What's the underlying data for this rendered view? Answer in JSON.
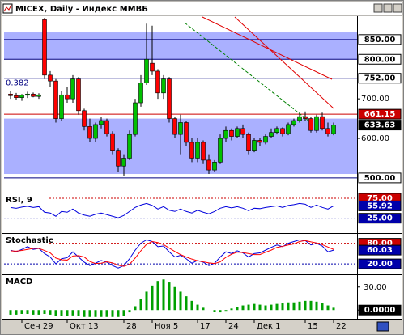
{
  "chart_data": [
    {
      "type": "candlestick",
      "title": "MICEX, Daily - Индекс ММВБ",
      "categories": [
        null,
        null,
        "Сен 29",
        null,
        null,
        null,
        null,
        null,
        null,
        null,
        "Окт 13",
        null,
        null,
        null,
        null,
        null,
        null,
        null,
        null,
        null,
        "28",
        null,
        null,
        null,
        null,
        "Ноя 5",
        null,
        null,
        null,
        null,
        null,
        null,
        null,
        "17",
        null,
        null,
        null,
        null,
        "24",
        null,
        null,
        null,
        null,
        "Дек 1",
        null,
        null,
        null,
        null,
        null,
        null,
        null,
        null,
        "15",
        null,
        null,
        null,
        null,
        "22"
      ],
      "open": [
        712,
        708,
        703,
        709,
        712,
        706,
        900,
        760,
        745,
        650,
        710,
        700,
        750,
        670,
        630,
        600,
        635,
        645,
        612,
        570,
        530,
        550,
        610,
        690,
        740,
        790,
        770,
        715,
        750,
        650,
        610,
        640,
        590,
        550,
        590,
        545,
        520,
        540,
        600,
        620,
        605,
        625,
        610,
        570,
        595,
        590,
        605,
        615,
        625,
        612,
        635,
        645,
        655,
        650,
        620,
        655,
        625,
        612
      ],
      "high": [
        720,
        715,
        712,
        718,
        716,
        714,
        905,
        770,
        750,
        720,
        730,
        760,
        755,
        675,
        650,
        640,
        655,
        650,
        618,
        575,
        560,
        620,
        700,
        760,
        890,
        885,
        775,
        760,
        755,
        655,
        660,
        645,
        600,
        600,
        595,
        560,
        545,
        610,
        630,
        625,
        630,
        635,
        615,
        600,
        600,
        610,
        625,
        630,
        628,
        640,
        650,
        665,
        668,
        655,
        660,
        665,
        640,
        640
      ],
      "low": [
        700,
        698,
        695,
        702,
        704,
        700,
        750,
        730,
        640,
        645,
        690,
        690,
        660,
        620,
        590,
        590,
        625,
        605,
        560,
        515,
        505,
        545,
        605,
        680,
        735,
        760,
        700,
        700,
        640,
        600,
        560,
        580,
        540,
        540,
        535,
        510,
        515,
        535,
        590,
        595,
        600,
        600,
        560,
        565,
        580,
        585,
        600,
        610,
        605,
        608,
        630,
        640,
        645,
        615,
        615,
        620,
        605,
        608
      ],
      "close": [
        708,
        703,
        709,
        712,
        706,
        710,
        760,
        745,
        650,
        710,
        700,
        750,
        670,
        630,
        600,
        635,
        645,
        612,
        570,
        530,
        550,
        610,
        690,
        740,
        800,
        770,
        715,
        750,
        650,
        610,
        640,
        590,
        550,
        590,
        545,
        520,
        540,
        600,
        620,
        605,
        625,
        610,
        570,
        595,
        590,
        605,
        615,
        625,
        612,
        635,
        645,
        655,
        650,
        620,
        655,
        625,
        612,
        633.63
      ],
      "up_color": "#00c000",
      "down_color": "#ff0000",
      "ylim": [
        465,
        909
      ],
      "yticks": [
        {
          "value": 700,
          "label": "700.00"
        },
        {
          "value": 600,
          "label": "600.00"
        }
      ],
      "hlines": [
        {
          "value": 850,
          "label": "850.00"
        },
        {
          "value": 800,
          "label": "800.00"
        },
        {
          "value": 752,
          "label": "752.00"
        },
        {
          "value": 661.15,
          "color": "#cc0000"
        },
        {
          "value": 500,
          "label": "500.00"
        }
      ],
      "bands": [
        [
          800,
          868
        ],
        [
          510,
          650
        ]
      ],
      "band_color": "#aab0ff",
      "annotation": "0.382"
    },
    {
      "type": "line",
      "title": "RSI, 9",
      "color": "#0000dd",
      "values": [
        52,
        50,
        53,
        55,
        52,
        54,
        40,
        38,
        30,
        42,
        40,
        48,
        38,
        33,
        30,
        35,
        38,
        34,
        30,
        26,
        32,
        42,
        52,
        58,
        62,
        57,
        48,
        54,
        45,
        42,
        48,
        42,
        38,
        45,
        40,
        36,
        42,
        50,
        54,
        51,
        54,
        50,
        44,
        50,
        49,
        52,
        54,
        56,
        52,
        57,
        59,
        62,
        60,
        52,
        58,
        52,
        48,
        55.92
      ],
      "ylim": [
        -10,
        85
      ],
      "yticks": [
        {
          "value": 75,
          "label": "75.00"
        },
        {
          "value": 25,
          "label": "25.00"
        }
      ]
    },
    {
      "type": "line",
      "title": "Stochastic",
      "series": [
        {
          "color": "#0000dd",
          "values": [
            60,
            55,
            62,
            70,
            62,
            65,
            50,
            40,
            20,
            35,
            38,
            55,
            40,
            25,
            15,
            22,
            30,
            25,
            15,
            8,
            15,
            35,
            60,
            80,
            90,
            85,
            70,
            72,
            55,
            40,
            45,
            35,
            22,
            30,
            25,
            15,
            22,
            40,
            55,
            50,
            58,
            52,
            40,
            50,
            52,
            60,
            68,
            75,
            70,
            80,
            85,
            90,
            88,
            75,
            80,
            72,
            55,
            60.03
          ]
        },
        {
          "color": "#ff0000",
          "values": [
            58,
            57,
            59,
            62,
            65,
            65,
            59,
            52,
            37,
            32,
            31,
            43,
            44,
            40,
            27,
            21,
            22,
            26,
            23,
            16,
            13,
            19,
            37,
            58,
            77,
            85,
            82,
            76,
            66,
            56,
            47,
            40,
            34,
            29,
            26,
            23,
            21,
            26,
            39,
            48,
            54,
            53,
            50,
            47,
            47,
            54,
            60,
            68,
            71,
            75,
            78,
            85,
            88,
            84,
            81,
            76,
            69,
            62
          ]
        }
      ],
      "ylim": [
        -8,
        105
      ],
      "yticks": [
        {
          "value": 80,
          "label": "80.00"
        },
        {
          "value": 20,
          "label": "20.00"
        }
      ]
    },
    {
      "type": "bar",
      "title": "MACD",
      "color": "#00a000",
      "values": [
        -6,
        -6,
        -5,
        -5,
        -6,
        -6,
        -5,
        -6,
        -8,
        -8,
        -8,
        -7,
        -8,
        -9,
        -9,
        -9,
        -9,
        -9,
        -9,
        -9,
        -8,
        -3,
        5,
        15,
        24,
        32,
        38,
        40,
        36,
        30,
        24,
        18,
        12,
        7,
        3,
        0,
        -2,
        -3,
        -1,
        2,
        4,
        6,
        7,
        8,
        7,
        6,
        7,
        8,
        9,
        10,
        10,
        11,
        12,
        12,
        11,
        9,
        6,
        3
      ],
      "ylim": [
        -10.3,
        44.5
      ],
      "yticks": [
        {
          "value": 30,
          "label": "30.00"
        },
        {
          "value": 0,
          "label": "0.0000"
        }
      ]
    }
  ]
}
